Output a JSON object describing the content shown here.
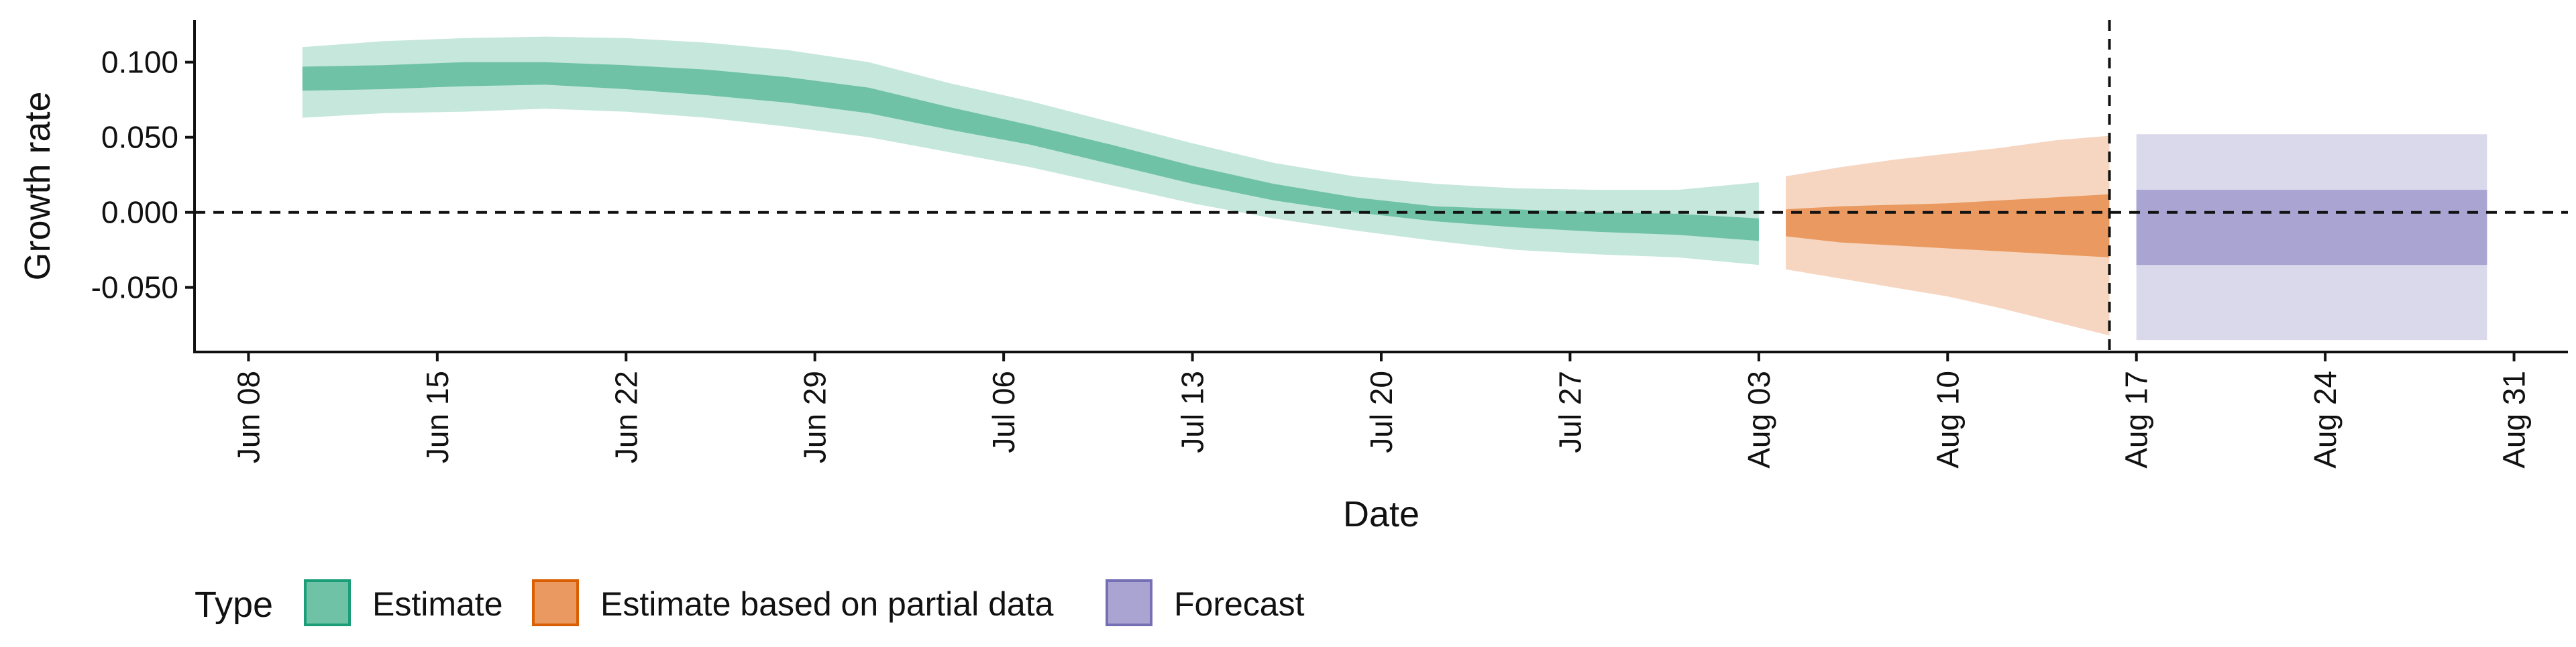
{
  "chart_data": {
    "type": "area",
    "xlabel": "Date",
    "ylabel": "Growth rate",
    "x_type": "date",
    "xlim": [
      "2020-06-06",
      "2020-09-02"
    ],
    "ylim": [
      -0.093,
      0.128
    ],
    "x_ticks": [
      {
        "date": "2020-06-08",
        "label": "Jun 08"
      },
      {
        "date": "2020-06-15",
        "label": "Jun 15"
      },
      {
        "date": "2020-06-22",
        "label": "Jun 22"
      },
      {
        "date": "2020-06-29",
        "label": "Jun 29"
      },
      {
        "date": "2020-07-06",
        "label": "Jul 06"
      },
      {
        "date": "2020-07-13",
        "label": "Jul 13"
      },
      {
        "date": "2020-07-20",
        "label": "Jul 20"
      },
      {
        "date": "2020-07-27",
        "label": "Jul 27"
      },
      {
        "date": "2020-08-03",
        "label": "Aug 03"
      },
      {
        "date": "2020-08-10",
        "label": "Aug 10"
      },
      {
        "date": "2020-08-17",
        "label": "Aug 17"
      },
      {
        "date": "2020-08-24",
        "label": "Aug 24"
      },
      {
        "date": "2020-08-31",
        "label": "Aug 31"
      }
    ],
    "y_ticks": [
      {
        "value": 0.1,
        "label": "0.100"
      },
      {
        "value": 0.05,
        "label": "0.050"
      },
      {
        "value": 0.0,
        "label": "0.000"
      },
      {
        "value": -0.05,
        "label": "-0.050"
      }
    ],
    "hline": 0.0,
    "vline": "2020-08-16",
    "legend": {
      "title": "Type",
      "position": "bottom-left",
      "entries": [
        {
          "label": "Estimate",
          "fill": "#6fc2a6",
          "border": "#1b9e77"
        },
        {
          "label": "Estimate based on partial data",
          "fill": "#ea9a60",
          "border": "#d95f02"
        },
        {
          "label": "Forecast",
          "fill": "#a9a4d2",
          "border": "#7570b3"
        }
      ]
    },
    "series": [
      {
        "name": "Estimate",
        "color_inner": "#6fc2a6",
        "color_outer": "#c6e7dc",
        "points": [
          {
            "x": "2020-06-10",
            "l90": 0.063,
            "l50": 0.081,
            "u50": 0.097,
            "u90": 0.11
          },
          {
            "x": "2020-06-13",
            "l90": 0.066,
            "l50": 0.082,
            "u50": 0.098,
            "u90": 0.114
          },
          {
            "x": "2020-06-16",
            "l90": 0.067,
            "l50": 0.084,
            "u50": 0.1,
            "u90": 0.116
          },
          {
            "x": "2020-06-19",
            "l90": 0.069,
            "l50": 0.085,
            "u50": 0.1,
            "u90": 0.117
          },
          {
            "x": "2020-06-22",
            "l90": 0.067,
            "l50": 0.082,
            "u50": 0.098,
            "u90": 0.116
          },
          {
            "x": "2020-06-25",
            "l90": 0.063,
            "l50": 0.078,
            "u50": 0.095,
            "u90": 0.113
          },
          {
            "x": "2020-06-28",
            "l90": 0.057,
            "l50": 0.073,
            "u50": 0.09,
            "u90": 0.108
          },
          {
            "x": "2020-07-01",
            "l90": 0.05,
            "l50": 0.066,
            "u50": 0.083,
            "u90": 0.1
          },
          {
            "x": "2020-07-04",
            "l90": 0.04,
            "l50": 0.055,
            "u50": 0.07,
            "u90": 0.086
          },
          {
            "x": "2020-07-07",
            "l90": 0.03,
            "l50": 0.045,
            "u50": 0.058,
            "u90": 0.074
          },
          {
            "x": "2020-07-10",
            "l90": 0.018,
            "l50": 0.032,
            "u50": 0.045,
            "u90": 0.06
          },
          {
            "x": "2020-07-13",
            "l90": 0.006,
            "l50": 0.019,
            "u50": 0.031,
            "u90": 0.046
          },
          {
            "x": "2020-07-16",
            "l90": -0.004,
            "l50": 0.008,
            "u50": 0.019,
            "u90": 0.033
          },
          {
            "x": "2020-07-19",
            "l90": -0.012,
            "l50": 0.0,
            "u50": 0.01,
            "u90": 0.024
          },
          {
            "x": "2020-07-22",
            "l90": -0.019,
            "l50": -0.006,
            "u50": 0.004,
            "u90": 0.019
          },
          {
            "x": "2020-07-25",
            "l90": -0.025,
            "l50": -0.01,
            "u50": 0.002,
            "u90": 0.016
          },
          {
            "x": "2020-07-28",
            "l90": -0.028,
            "l50": -0.013,
            "u50": 0.0,
            "u90": 0.015
          },
          {
            "x": "2020-07-31",
            "l90": -0.03,
            "l50": -0.015,
            "u50": -0.001,
            "u90": 0.015
          },
          {
            "x": "2020-08-03",
            "l90": -0.035,
            "l50": -0.019,
            "u50": -0.004,
            "u90": 0.02
          }
        ]
      },
      {
        "name": "Estimate based on partial data",
        "color_inner": "#ea9a60",
        "color_outer": "#f6d6c0",
        "points": [
          {
            "x": "2020-08-04",
            "l90": -0.038,
            "l50": -0.016,
            "u50": 0.002,
            "u90": 0.024
          },
          {
            "x": "2020-08-06",
            "l90": -0.044,
            "l50": -0.02,
            "u50": 0.004,
            "u90": 0.03
          },
          {
            "x": "2020-08-08",
            "l90": -0.05,
            "l50": -0.022,
            "u50": 0.005,
            "u90": 0.035
          },
          {
            "x": "2020-08-10",
            "l90": -0.056,
            "l50": -0.024,
            "u50": 0.006,
            "u90": 0.039
          },
          {
            "x": "2020-08-12",
            "l90": -0.064,
            "l50": -0.026,
            "u50": 0.008,
            "u90": 0.043
          },
          {
            "x": "2020-08-14",
            "l90": -0.073,
            "l50": -0.028,
            "u50": 0.01,
            "u90": 0.048
          },
          {
            "x": "2020-08-16",
            "l90": -0.082,
            "l50": -0.03,
            "u50": 0.012,
            "u90": 0.051
          }
        ]
      },
      {
        "name": "Forecast",
        "color_inner": "#a9a4d2",
        "color_outer": "#dad8eb",
        "points": [
          {
            "x": "2020-08-17",
            "l90": -0.085,
            "l50": -0.035,
            "u50": 0.015,
            "u90": 0.052
          },
          {
            "x": "2020-08-30",
            "l90": -0.085,
            "l50": -0.035,
            "u50": 0.015,
            "u90": 0.052
          }
        ]
      }
    ]
  }
}
